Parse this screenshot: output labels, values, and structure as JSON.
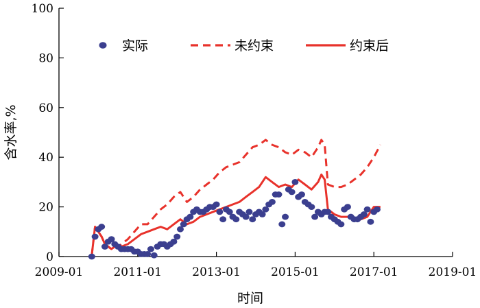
{
  "chart_data": {
    "type": "line",
    "title": "",
    "xlabel": "时间",
    "ylabel": "含水率,%",
    "x_range": [
      "2009-01",
      "2019-01"
    ],
    "ylim": [
      0,
      100
    ],
    "x_ticks": [
      "2009-01",
      "2011-01",
      "2013-01",
      "2015-01",
      "2017-01",
      "2019-01"
    ],
    "y_ticks": [
      0,
      20,
      40,
      60,
      80,
      100
    ],
    "grid": false,
    "legend_position": "top",
    "colors": {
      "actual": "#3b3f8f",
      "unconstrained": "#e8322b",
      "constrained": "#e8322b"
    },
    "series": [
      {
        "name": "实际",
        "style": "scatter",
        "x": [
          "2009-11",
          "2009-12",
          "2010-01",
          "2010-02",
          "2010-03",
          "2010-04",
          "2010-05",
          "2010-06",
          "2010-07",
          "2010-08",
          "2010-09",
          "2010-10",
          "2010-11",
          "2010-12",
          "2011-01",
          "2011-02",
          "2011-03",
          "2011-04",
          "2011-05",
          "2011-06",
          "2011-07",
          "2011-08",
          "2011-09",
          "2011-10",
          "2011-11",
          "2011-12",
          "2012-01",
          "2012-02",
          "2012-03",
          "2012-04",
          "2012-05",
          "2012-06",
          "2012-07",
          "2012-08",
          "2012-09",
          "2012-10",
          "2012-11",
          "2012-12",
          "2013-01",
          "2013-02",
          "2013-03",
          "2013-04",
          "2013-05",
          "2013-06",
          "2013-07",
          "2013-08",
          "2013-09",
          "2013-10",
          "2013-11",
          "2013-12",
          "2014-01",
          "2014-02",
          "2014-03",
          "2014-04",
          "2014-05",
          "2014-06",
          "2014-07",
          "2014-08",
          "2014-09",
          "2014-10",
          "2014-11",
          "2014-12",
          "2015-01",
          "2015-02",
          "2015-03",
          "2015-04",
          "2015-05",
          "2015-06",
          "2015-07",
          "2015-08",
          "2015-09",
          "2015-10",
          "2015-11",
          "2015-12",
          "2016-01",
          "2016-02",
          "2016-03",
          "2016-04",
          "2016-05",
          "2016-06",
          "2016-07",
          "2016-08",
          "2016-09",
          "2016-10",
          "2016-11",
          "2016-12",
          "2017-01",
          "2017-02"
        ],
        "values": [
          0,
          8,
          11,
          12,
          4,
          6,
          7,
          5,
          4,
          3,
          3,
          3,
          3,
          2,
          2,
          1,
          1,
          1,
          3,
          0.5,
          4,
          5,
          5,
          4,
          5,
          6,
          8,
          11,
          13,
          15,
          16,
          18,
          19,
          18,
          18,
          19,
          20,
          20,
          21,
          18,
          15,
          19,
          18,
          16,
          15,
          18,
          17,
          16,
          18,
          15,
          17,
          18,
          17,
          19,
          21,
          22,
          25,
          25,
          13,
          16,
          27,
          26,
          30,
          24,
          25,
          22,
          21,
          20,
          16,
          18,
          17,
          18,
          18,
          16,
          15,
          14,
          13,
          19,
          20,
          16,
          15,
          15,
          16,
          17,
          19,
          14,
          18,
          19
        ]
      },
      {
        "name": "未约束",
        "style": "dashed",
        "x": [
          "2009-11",
          "2009-12",
          "2010-01",
          "2010-02",
          "2010-03",
          "2010-04",
          "2010-05",
          "2010-06",
          "2010-07",
          "2010-08",
          "2010-10",
          "2010-12",
          "2011-02",
          "2011-04",
          "2011-06",
          "2011-08",
          "2011-10",
          "2011-12",
          "2012-02",
          "2012-04",
          "2012-06",
          "2012-08",
          "2012-10",
          "2012-12",
          "2013-02",
          "2013-04",
          "2013-06",
          "2013-08",
          "2013-10",
          "2013-12",
          "2014-02",
          "2014-04",
          "2014-06",
          "2014-08",
          "2014-10",
          "2014-12",
          "2015-02",
          "2015-04",
          "2015-06",
          "2015-08",
          "2015-09",
          "2015-10",
          "2015-11",
          "2016-01",
          "2016-03",
          "2016-05",
          "2016-07",
          "2016-09",
          "2016-11",
          "2017-01",
          "2017-03"
        ],
        "values": [
          0.5,
          12,
          10,
          8,
          5,
          4,
          3,
          4,
          3.5,
          5,
          7,
          10,
          13,
          13,
          16,
          19,
          21,
          24,
          26,
          22,
          24,
          27,
          29,
          31,
          34,
          36,
          37,
          38,
          41,
          44,
          45,
          47,
          45,
          44,
          42,
          41,
          43,
          42,
          40,
          44,
          47,
          45,
          29,
          28,
          28,
          29,
          31,
          33,
          36,
          40,
          45
        ]
      },
      {
        "name": "约束后",
        "style": "solid",
        "x": [
          "2009-11",
          "2009-12",
          "2010-01",
          "2010-02",
          "2010-03",
          "2010-04",
          "2010-05",
          "2010-06",
          "2010-07",
          "2010-08",
          "2010-10",
          "2010-12",
          "2011-02",
          "2011-04",
          "2011-06",
          "2011-08",
          "2011-10",
          "2011-12",
          "2012-02",
          "2012-04",
          "2012-06",
          "2012-08",
          "2012-10",
          "2012-12",
          "2013-02",
          "2013-04",
          "2013-06",
          "2013-08",
          "2013-10",
          "2013-12",
          "2014-02",
          "2014-04",
          "2014-06",
          "2014-08",
          "2014-10",
          "2014-12",
          "2015-02",
          "2015-04",
          "2015-06",
          "2015-08",
          "2015-09",
          "2015-10",
          "2015-11",
          "2016-01",
          "2016-03",
          "2016-05",
          "2016-07",
          "2016-09",
          "2016-11",
          "2017-01",
          "2017-03"
        ],
        "values": [
          0.5,
          12,
          10,
          8,
          5,
          4,
          3,
          4,
          3.5,
          4,
          5,
          7,
          9,
          10,
          11,
          12,
          11,
          13,
          15,
          13,
          14,
          16,
          17,
          18,
          19,
          20,
          21,
          22,
          24,
          26,
          28,
          32,
          30,
          28,
          29,
          28,
          31,
          29,
          27,
          30,
          33,
          31,
          19,
          17,
          16,
          16,
          15,
          15,
          16,
          20,
          20
        ]
      }
    ]
  }
}
